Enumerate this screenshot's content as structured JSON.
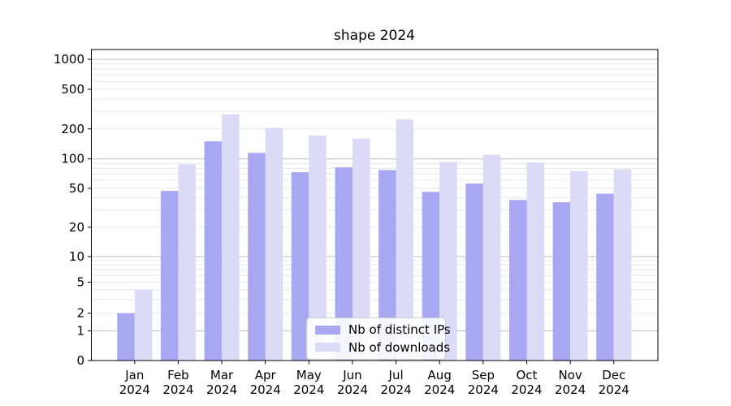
{
  "figure": {
    "background": "#ffffff"
  },
  "chart_data": {
    "type": "bar",
    "title": "shape 2024",
    "categories": [
      "Jan 2024",
      "Feb 2024",
      "Mar 2024",
      "Apr 2024",
      "May 2024",
      "Jun 2024",
      "Jul 2024",
      "Aug 2024",
      "Sep 2024",
      "Oct 2024",
      "Nov 2024",
      "Dec 2024"
    ],
    "series": [
      {
        "name": "Nb of distinct IPs",
        "color": "#a8a8f2",
        "values": [
          2,
          47,
          150,
          115,
          73,
          82,
          77,
          46,
          56,
          38,
          36,
          44
        ]
      },
      {
        "name": "Nb of downloads",
        "color": "#dbdbf8",
        "values": [
          4,
          88,
          280,
          205,
          172,
          160,
          250,
          93,
          110,
          92,
          75,
          78
        ]
      }
    ],
    "yscale": "symlog",
    "y_ticks": [
      0,
      1,
      2,
      5,
      10,
      20,
      50,
      100,
      200,
      500,
      1000
    ],
    "ylim": [
      0,
      1300
    ],
    "xlabel": "",
    "ylabel": "",
    "grid": true,
    "legend_position": "lower center",
    "colors": {
      "major_grid": "#bdbdbd",
      "minor_grid": "#e8e8e8",
      "spine": "#000000",
      "text": "#000000"
    }
  }
}
